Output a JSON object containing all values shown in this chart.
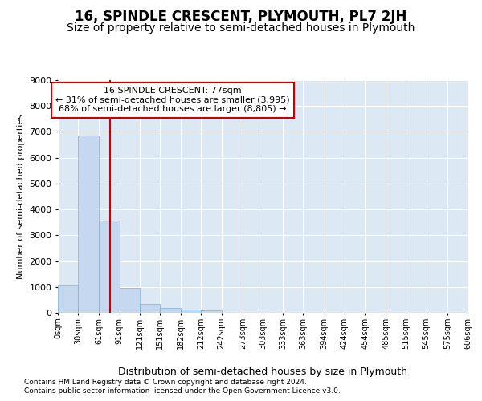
{
  "title": "16, SPINDLE CRESCENT, PLYMOUTH, PL7 2JH",
  "subtitle": "Size of property relative to semi-detached houses in Plymouth",
  "xlabel": "Distribution of semi-detached houses by size in Plymouth",
  "ylabel": "Number of semi-detached properties",
  "footer_line1": "Contains HM Land Registry data © Crown copyright and database right 2024.",
  "footer_line2": "Contains public sector information licensed under the Open Government Licence v3.0.",
  "property_label": "16 SPINDLE CRESCENT: 77sqm",
  "smaller_pct": 31,
  "smaller_count": "3,995",
  "larger_pct": 68,
  "larger_count": "8,805",
  "bar_values": [
    1100,
    6850,
    3580,
    960,
    350,
    200,
    120,
    100,
    0,
    0,
    0,
    0,
    0,
    0,
    0,
    0,
    0,
    0,
    0,
    0
  ],
  "bin_edges": [
    0,
    30,
    61,
    91,
    121,
    151,
    182,
    212,
    242,
    273,
    303,
    333,
    363,
    394,
    424,
    454,
    485,
    515,
    545,
    576,
    606
  ],
  "tick_labels": [
    "0sqm",
    "30sqm",
    "61sqm",
    "91sqm",
    "121sqm",
    "151sqm",
    "182sqm",
    "212sqm",
    "242sqm",
    "273sqm",
    "303sqm",
    "333sqm",
    "363sqm",
    "394sqm",
    "424sqm",
    "454sqm",
    "485sqm",
    "515sqm",
    "545sqm",
    "575sqm",
    "606sqm"
  ],
  "ylim": [
    0,
    9000
  ],
  "yticks": [
    0,
    1000,
    2000,
    3000,
    4000,
    5000,
    6000,
    7000,
    8000,
    9000
  ],
  "bar_color": "#c5d8f0",
  "bar_edge_color": "#7bafd4",
  "vline_color": "#cc0000",
  "vline_x": 77,
  "annotation_box_color": "#cc0000",
  "bg_color": "#dde8f5",
  "grid_color": "#ffffff",
  "title_fontsize": 12,
  "subtitle_fontsize": 10,
  "xlabel_fontsize": 9,
  "ylabel_fontsize": 8,
  "tick_fontsize": 7,
  "footer_fontsize": 6.5,
  "annot_fontsize": 8
}
